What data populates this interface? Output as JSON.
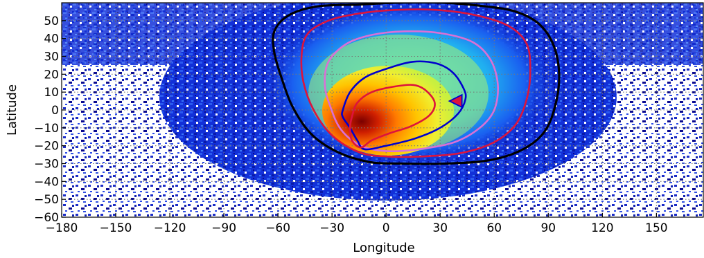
{
  "chart_data": {
    "type": "heatmap",
    "title": "",
    "xlabel": "Longitude",
    "ylabel": "Latitude",
    "xlim": [
      -180,
      176
    ],
    "ylim": [
      -60,
      60
    ],
    "xticks": [
      -180,
      -150,
      -120,
      -90,
      -60,
      -30,
      0,
      30,
      60,
      90,
      120,
      150
    ],
    "yticks": [
      -60,
      -50,
      -40,
      -30,
      -20,
      -10,
      0,
      10,
      20,
      30,
      40,
      50
    ],
    "xtick_labels": [
      "−180",
      "−150",
      "−120",
      "−90",
      "−60",
      "−30",
      "0",
      "30",
      "60",
      "90",
      "120",
      "150"
    ],
    "ytick_labels": [
      "−60",
      "−50",
      "−40",
      "−30",
      "−20",
      "−10",
      "0",
      "10",
      "20",
      "30",
      "40",
      "50"
    ],
    "grid": true,
    "density_peak": [
      -6,
      -14
    ],
    "contours": [
      {
        "color": "#000000",
        "points": [
          [
            -62,
            44
          ],
          [
            -54,
            53
          ],
          [
            -38,
            58
          ],
          [
            -15,
            59
          ],
          [
            5,
            60
          ],
          [
            32,
            60
          ],
          [
            55,
            58
          ],
          [
            72,
            55
          ],
          [
            85,
            48
          ],
          [
            93,
            36
          ],
          [
            96,
            20
          ],
          [
            94,
            3
          ],
          [
            88,
            -12
          ],
          [
            76,
            -22
          ],
          [
            58,
            -28
          ],
          [
            34,
            -30
          ],
          [
            8,
            -30
          ],
          [
            -10,
            -29
          ],
          [
            -28,
            -23
          ],
          [
            -42,
            -13
          ],
          [
            -52,
            2
          ],
          [
            -58,
            18
          ],
          [
            -62,
            32
          ]
        ]
      },
      {
        "color": "#dc143c",
        "points": [
          [
            -44,
            42
          ],
          [
            -32,
            50
          ],
          [
            -15,
            54
          ],
          [
            5,
            56
          ],
          [
            28,
            56
          ],
          [
            50,
            53
          ],
          [
            68,
            47
          ],
          [
            78,
            37
          ],
          [
            80,
            22
          ],
          [
            78,
            6
          ],
          [
            72,
            -8
          ],
          [
            60,
            -18
          ],
          [
            42,
            -24
          ],
          [
            20,
            -26
          ],
          [
            0,
            -26
          ],
          [
            -14,
            -24
          ],
          [
            -28,
            -16
          ],
          [
            -38,
            -4
          ],
          [
            -45,
            12
          ],
          [
            -47,
            28
          ]
        ]
      },
      {
        "color": "#da70d6",
        "points": [
          [
            -32,
            27
          ],
          [
            -22,
            37
          ],
          [
            -8,
            42
          ],
          [
            10,
            44
          ],
          [
            30,
            43
          ],
          [
            48,
            38
          ],
          [
            58,
            28
          ],
          [
            62,
            14
          ],
          [
            60,
            0
          ],
          [
            52,
            -10
          ],
          [
            38,
            -18
          ],
          [
            18,
            -22
          ],
          [
            0,
            -23
          ],
          [
            -14,
            -20
          ],
          [
            -25,
            -11
          ],
          [
            -31,
            2
          ],
          [
            -34,
            14
          ]
        ]
      },
      {
        "color": "#0000cd",
        "points": [
          [
            -24,
            0
          ],
          [
            -20,
            10
          ],
          [
            -12,
            18
          ],
          [
            0,
            23
          ],
          [
            15,
            27
          ],
          [
            28,
            26
          ],
          [
            37,
            21
          ],
          [
            43,
            12
          ],
          [
            44,
            6
          ],
          [
            40,
            -2
          ],
          [
            30,
            -10
          ],
          [
            16,
            -16
          ],
          [
            0,
            -20
          ],
          [
            -12,
            -22
          ],
          [
            -16,
            -17
          ],
          [
            -20,
            -10
          ],
          [
            -24,
            -4
          ]
        ]
      },
      {
        "color": "#dc143c",
        "points": [
          [
            -19,
            -4
          ],
          [
            -16,
            4
          ],
          [
            -8,
            10
          ],
          [
            4,
            13
          ],
          [
            15,
            14
          ],
          [
            22,
            11
          ],
          [
            27,
            4
          ],
          [
            24,
            -3
          ],
          [
            14,
            -9
          ],
          [
            2,
            -13
          ],
          [
            -8,
            -17
          ],
          [
            -14,
            -21
          ],
          [
            -19,
            -17
          ],
          [
            -20,
            -10
          ]
        ]
      }
    ],
    "marker": {
      "shape": "triangle",
      "x": 39,
      "y": 5,
      "fill": "#dc143c",
      "stroke": "#0000cd"
    }
  }
}
